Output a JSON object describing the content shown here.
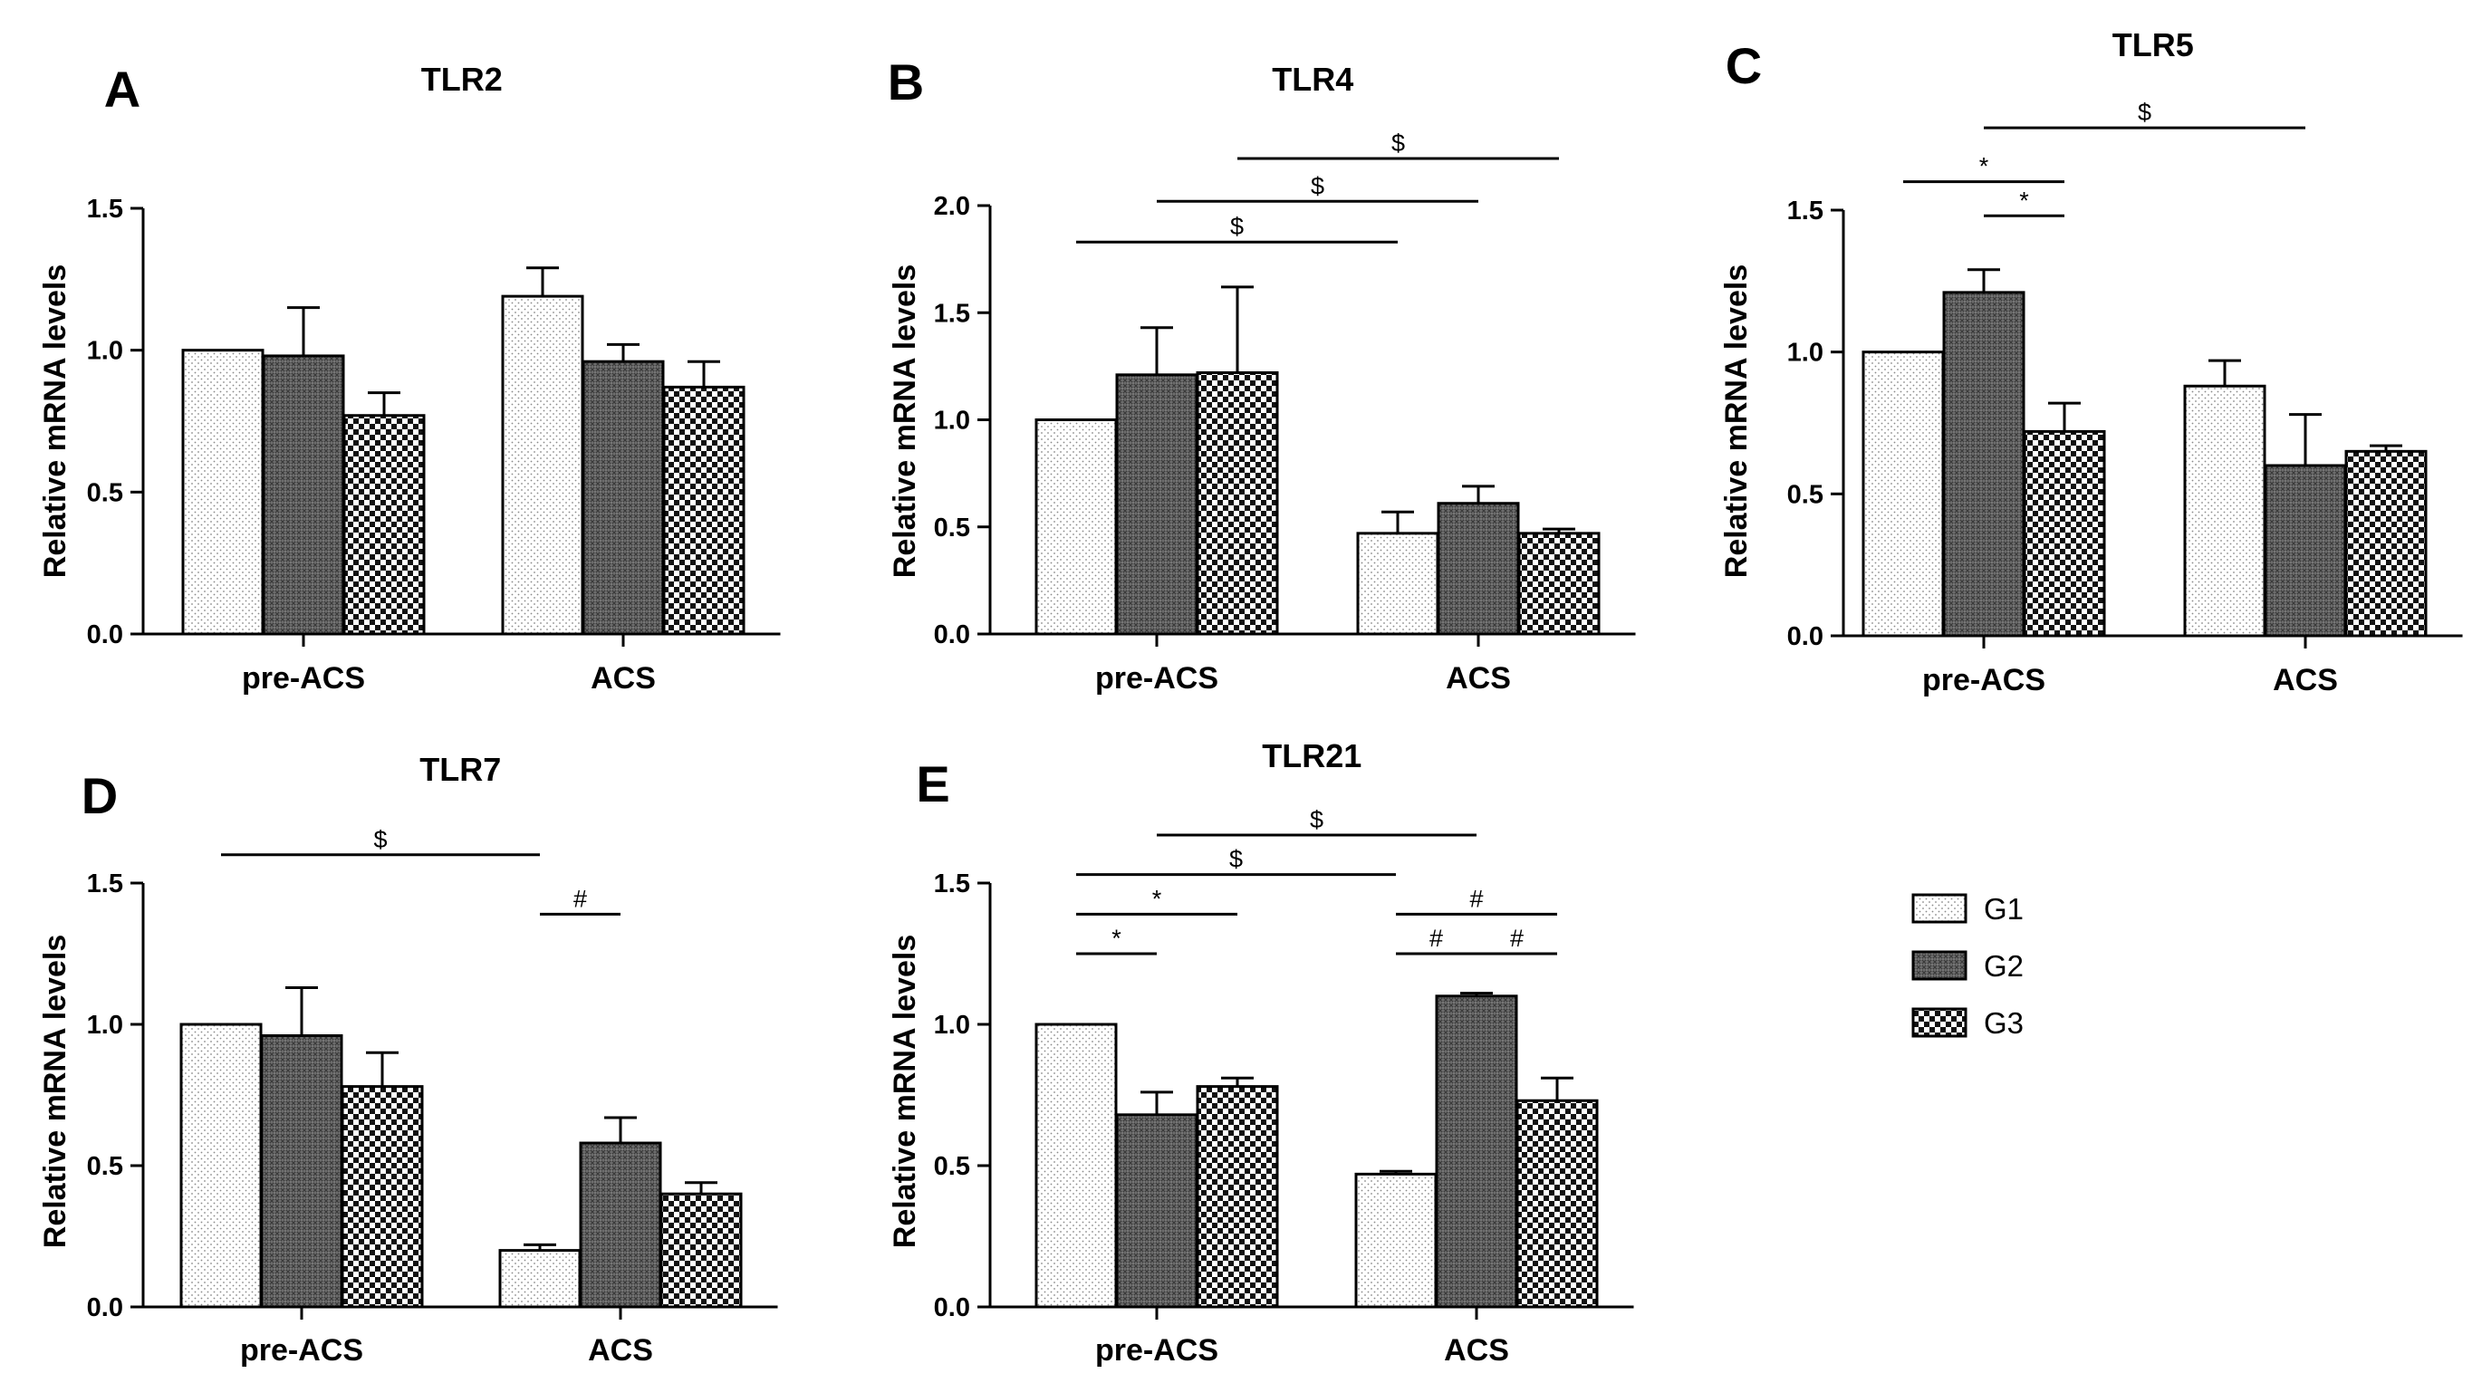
{
  "groups": [
    "G1",
    "G2",
    "G3"
  ],
  "legend": {
    "items": [
      {
        "label": "G1",
        "pattern": "dots"
      },
      {
        "label": "G2",
        "pattern": "crosshatch"
      },
      {
        "label": "G3",
        "pattern": "checker"
      }
    ]
  },
  "chart_data": [
    {
      "panel": "A",
      "type": "bar",
      "title": "TLR2",
      "xlabel": "",
      "ylabel": "Relative mRNA levels",
      "categories": [
        "pre-ACS",
        "ACS"
      ],
      "ylim": [
        0,
        1.5
      ],
      "yticks": [
        "0.0",
        "0.5",
        "1.0",
        "1.5"
      ],
      "series": [
        {
          "name": "G1",
          "values": [
            1.0,
            1.19
          ],
          "errors": [
            0.0,
            0.1
          ]
        },
        {
          "name": "G2",
          "values": [
            0.98,
            0.96
          ],
          "errors": [
            0.17,
            0.06
          ]
        },
        {
          "name": "G3",
          "values": [
            0.77,
            0.87
          ],
          "errors": [
            0.08,
            0.09
          ]
        }
      ],
      "annotations": []
    },
    {
      "panel": "B",
      "type": "bar",
      "title": "TLR4",
      "xlabel": "",
      "ylabel": "Relative mRNA levels",
      "categories": [
        "pre-ACS",
        "ACS"
      ],
      "ylim": [
        0,
        2.0
      ],
      "yticks": [
        "0.0",
        "0.5",
        "1.0",
        "1.5",
        "2.0"
      ],
      "series": [
        {
          "name": "G1",
          "values": [
            1.0,
            0.47
          ],
          "errors": [
            0.0,
            0.1
          ]
        },
        {
          "name": "G2",
          "values": [
            1.21,
            0.61
          ],
          "errors": [
            0.22,
            0.08
          ]
        },
        {
          "name": "G3",
          "values": [
            1.22,
            0.47
          ],
          "errors": [
            0.4,
            0.02
          ]
        }
      ],
      "annotations": [
        {
          "label": "$",
          "from": [
            0,
            0
          ],
          "to": [
            1,
            0
          ],
          "y": 1.83
        },
        {
          "label": "$",
          "from": [
            0,
            1
          ],
          "to": [
            1,
            1
          ],
          "y": 2.02
        },
        {
          "label": "$",
          "from": [
            0,
            2
          ],
          "to": [
            1,
            2
          ],
          "y": 2.22
        }
      ]
    },
    {
      "panel": "C",
      "type": "bar",
      "title": "TLR5",
      "xlabel": "",
      "ylabel": "Relative mRNA levels",
      "categories": [
        "pre-ACS",
        "ACS"
      ],
      "ylim": [
        0,
        1.5
      ],
      "yticks": [
        "0.0",
        "0.5",
        "1.0",
        "1.5"
      ],
      "series": [
        {
          "name": "G1",
          "values": [
            1.0,
            0.88
          ],
          "errors": [
            0.0,
            0.09
          ]
        },
        {
          "name": "G2",
          "values": [
            1.21,
            0.6
          ],
          "errors": [
            0.08,
            0.18
          ]
        },
        {
          "name": "G3",
          "values": [
            0.72,
            0.65
          ],
          "errors": [
            0.1,
            0.02
          ]
        }
      ],
      "annotations": [
        {
          "label": "*",
          "from": [
            0,
            1
          ],
          "to": [
            0,
            2
          ],
          "y": 1.48
        },
        {
          "label": "*",
          "from": [
            0,
            0
          ],
          "to": [
            0,
            2
          ],
          "y": 1.6
        },
        {
          "label": "$",
          "from": [
            0,
            1
          ],
          "to": [
            1,
            1
          ],
          "y": 1.79
        }
      ]
    },
    {
      "panel": "D",
      "type": "bar",
      "title": "TLR7",
      "xlabel": "",
      "ylabel": "Relative mRNA levels",
      "categories": [
        "pre-ACS",
        "ACS"
      ],
      "ylim": [
        0,
        1.5
      ],
      "yticks": [
        "0.0",
        "0.5",
        "1.0",
        "1.5"
      ],
      "series": [
        {
          "name": "G1",
          "values": [
            1.0,
            0.2
          ],
          "errors": [
            0.0,
            0.02
          ]
        },
        {
          "name": "G2",
          "values": [
            0.96,
            0.58
          ],
          "errors": [
            0.17,
            0.09
          ]
        },
        {
          "name": "G3",
          "values": [
            0.78,
            0.4
          ],
          "errors": [
            0.12,
            0.04
          ]
        }
      ],
      "annotations": [
        {
          "label": "#",
          "from": [
            1,
            0
          ],
          "to": [
            1,
            1
          ],
          "y": 1.39
        },
        {
          "label": "$",
          "from": [
            0,
            0
          ],
          "to": [
            1,
            0
          ],
          "y": 1.6
        }
      ]
    },
    {
      "panel": "E",
      "type": "bar",
      "title": "TLR21",
      "xlabel": "",
      "ylabel": "Relative mRNA levels",
      "categories": [
        "pre-ACS",
        "ACS"
      ],
      "ylim": [
        0,
        1.5
      ],
      "yticks": [
        "0.0",
        "0.5",
        "1.0",
        "1.5"
      ],
      "series": [
        {
          "name": "G1",
          "values": [
            1.0,
            0.47
          ],
          "errors": [
            0.0,
            0.01
          ]
        },
        {
          "name": "G2",
          "values": [
            0.68,
            1.1
          ],
          "errors": [
            0.08,
            0.01
          ]
        },
        {
          "name": "G3",
          "values": [
            0.78,
            0.73
          ],
          "errors": [
            0.03,
            0.08
          ]
        }
      ],
      "annotations": [
        {
          "label": "*",
          "from": [
            0,
            0
          ],
          "to": [
            0,
            1
          ],
          "y": 1.25
        },
        {
          "label": "*",
          "from": [
            0,
            0
          ],
          "to": [
            0,
            2
          ],
          "y": 1.39
        },
        {
          "label": "$",
          "from": [
            0,
            0
          ],
          "to": [
            1,
            0
          ],
          "y": 1.53
        },
        {
          "label": "$",
          "from": [
            0,
            1
          ],
          "to": [
            1,
            1
          ],
          "y": 1.67
        },
        {
          "label": "#",
          "from": [
            1,
            0
          ],
          "to": [
            1,
            1
          ],
          "y": 1.25
        },
        {
          "label": "#",
          "from": [
            1,
            1
          ],
          "to": [
            1,
            2
          ],
          "y": 1.25
        },
        {
          "label": "#",
          "from": [
            1,
            0
          ],
          "to": [
            1,
            2
          ],
          "y": 1.39
        }
      ]
    }
  ]
}
